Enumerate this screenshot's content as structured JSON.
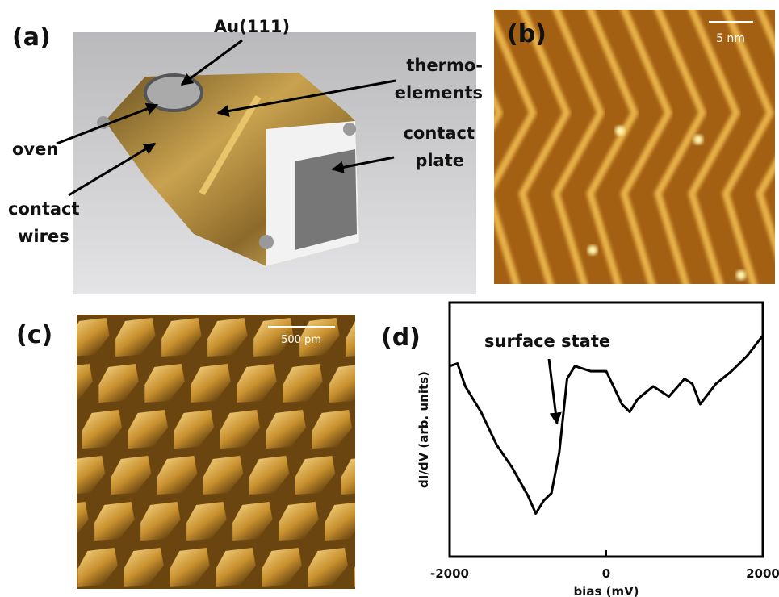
{
  "panels": {
    "a": {
      "label": "(a)",
      "annotations": [
        "Au(111)",
        "thermo-",
        "elements",
        "contact",
        "plate",
        "oven",
        "contact",
        "wires"
      ]
    },
    "b": {
      "label": "(b)",
      "scale_bar": "5 nm"
    },
    "c": {
      "label": "(c)",
      "scale_bar": "500 pm"
    },
    "d": {
      "label": "(d)"
    }
  },
  "chart_data": {
    "type": "line",
    "annotation": "surface state",
    "x_label": "bias (mV)",
    "y_label": "dI/dV (arb. units)",
    "x": [
      -2000,
      -1900,
      -1800,
      -1600,
      -1400,
      -1200,
      -1000,
      -900,
      -800,
      -700,
      -600,
      -500,
      -400,
      -200,
      0,
      200,
      300,
      400,
      600,
      800,
      1000,
      1100,
      1200,
      1400,
      1600,
      1800,
      2000
    ],
    "values": [
      0.75,
      0.76,
      0.67,
      0.57,
      0.44,
      0.35,
      0.24,
      0.17,
      0.22,
      0.25,
      0.41,
      0.7,
      0.75,
      0.73,
      0.73,
      0.6,
      0.57,
      0.62,
      0.67,
      0.63,
      0.7,
      0.68,
      0.6,
      0.68,
      0.73,
      0.79,
      0.87
    ],
    "color": "#000000",
    "xlim": [
      -2000,
      2000
    ],
    "xticks": [
      -2000,
      0,
      2000
    ],
    "ylim": [
      0,
      1
    ]
  }
}
